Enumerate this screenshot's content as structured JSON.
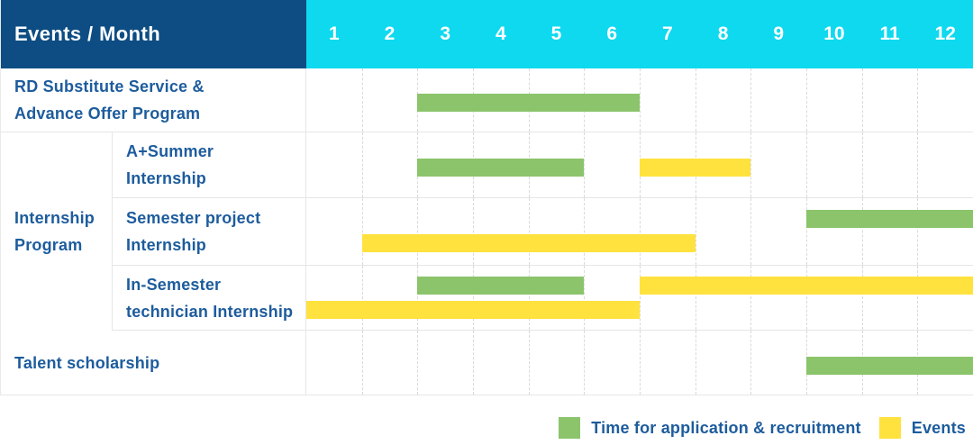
{
  "header": {
    "corner_label": "Events / Month",
    "months": [
      "1",
      "2",
      "3",
      "4",
      "5",
      "6",
      "7",
      "8",
      "9",
      "10",
      "11",
      "12"
    ]
  },
  "labels": {
    "row1": [
      "RD Substitute Service &",
      "Advance Offer Program"
    ],
    "group_internship": [
      "Internship",
      "Program"
    ],
    "row2": [
      "A+Summer",
      "Internship"
    ],
    "row3": [
      "Semester project",
      "Internship"
    ],
    "row4": [
      "In-Semester",
      "technician Internship"
    ],
    "row5": [
      "Talent scholarship"
    ]
  },
  "legend": {
    "items": [
      {
        "label": "Time for application & recruitment",
        "color": "#8BC46B",
        "series": "application"
      },
      {
        "label": "Events",
        "color": "#FFE23E",
        "series": "events"
      }
    ]
  },
  "colors": {
    "header_navy": "#0D4D83",
    "header_cyan": "#0ED9EF",
    "bar_green": "#8BC46B",
    "bar_yellow": "#FFE23E",
    "label_blue": "#1D5C9D",
    "grid_line": "#E6E6E6"
  },
  "chart_data": {
    "type": "gantt",
    "title": "Events / Month",
    "x_axis": {
      "unit": "month",
      "ticks": [
        1,
        2,
        3,
        4,
        5,
        6,
        7,
        8,
        9,
        10,
        11,
        12
      ],
      "range": [
        1,
        12
      ]
    },
    "series": {
      "application": {
        "label": "Time for application & recruitment",
        "color": "#8BC46B"
      },
      "events": {
        "label": "Events",
        "color": "#FFE23E"
      }
    },
    "rows": [
      {
        "group": null,
        "label": "RD Substitute Service & Advance Offer Program",
        "bars": [
          {
            "series": "application",
            "start_month": 3,
            "end_month": 6,
            "lane": "middle"
          }
        ]
      },
      {
        "group": "Internship Program",
        "label": "A+Summer Internship",
        "bars": [
          {
            "series": "application",
            "start_month": 3,
            "end_month": 5,
            "lane": "middle"
          },
          {
            "series": "events",
            "start_month": 7,
            "end_month": 8,
            "lane": "middle"
          }
        ]
      },
      {
        "group": "Internship Program",
        "label": "Semester project Internship",
        "bars": [
          {
            "series": "application",
            "start_month": 10,
            "end_month": 12,
            "lane": "upper"
          },
          {
            "series": "events",
            "start_month": 2,
            "end_month": 7,
            "lane": "lower"
          }
        ]
      },
      {
        "group": "Internship Program",
        "label": "In-Semester technician Internship",
        "bars": [
          {
            "series": "application",
            "start_month": 3,
            "end_month": 5,
            "lane": "upper"
          },
          {
            "series": "events",
            "start_month": 7,
            "end_month": 12,
            "lane": "upper"
          },
          {
            "series": "events",
            "start_month": 1,
            "end_month": 6,
            "lane": "lower"
          }
        ]
      },
      {
        "group": null,
        "label": "Talent scholarship",
        "bars": [
          {
            "series": "application",
            "start_month": 10,
            "end_month": 12,
            "lane": "middle"
          }
        ]
      }
    ]
  }
}
